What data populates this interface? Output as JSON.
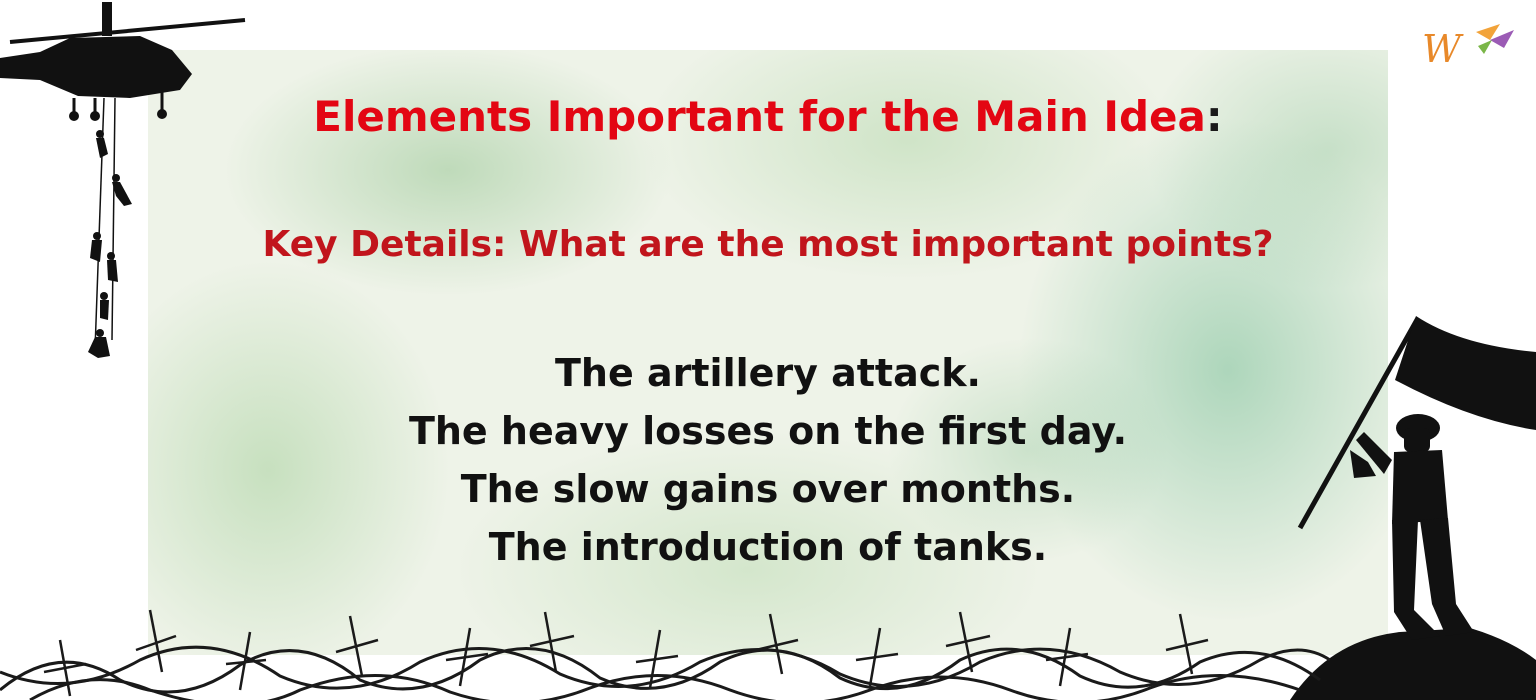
{
  "slide": {
    "title": "Elements Important for the Main Idea",
    "title_colon": ":",
    "subtitle": "Key Details: What are the most important points?",
    "points": [
      "The artillery attack.",
      "The heavy losses on the first day.",
      "The slow gains over months.",
      "The introduction of tanks."
    ]
  },
  "logo": {
    "letter": "W"
  },
  "colors": {
    "title": "#e30613",
    "subtitle": "#c1151c",
    "body_text": "#111111",
    "silhouette": "#111111",
    "panel_green": "#98c694"
  },
  "icons": {
    "top_left": "helicopter-icon",
    "ropes": "rappelling-soldiers-icon",
    "right": "soldier-with-flag-icon",
    "bottom": "barbed-wire-icon",
    "top_right": "logo-icon"
  }
}
